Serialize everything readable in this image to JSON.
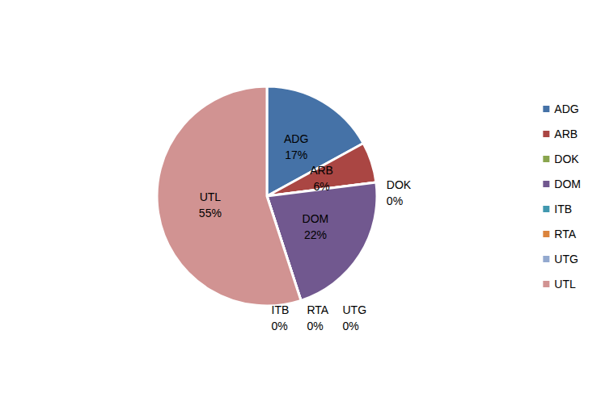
{
  "chart_data": {
    "type": "pie",
    "categories": [
      "ADG",
      "ARB",
      "DOK",
      "DOM",
      "ITB",
      "RTA",
      "UTG",
      "UTL"
    ],
    "values": [
      17,
      6,
      0,
      22,
      0,
      0,
      0,
      55
    ],
    "value_labels": [
      "17%",
      "6%",
      "0%",
      "22%",
      "0%",
      "0%",
      "0%",
      "55%"
    ],
    "colors": [
      "#4572a7",
      "#aa4643",
      "#89a54e",
      "#71588f",
      "#4198af",
      "#db843d",
      "#93a9cf",
      "#d19392"
    ],
    "legend": "right",
    "data_labels": true
  }
}
